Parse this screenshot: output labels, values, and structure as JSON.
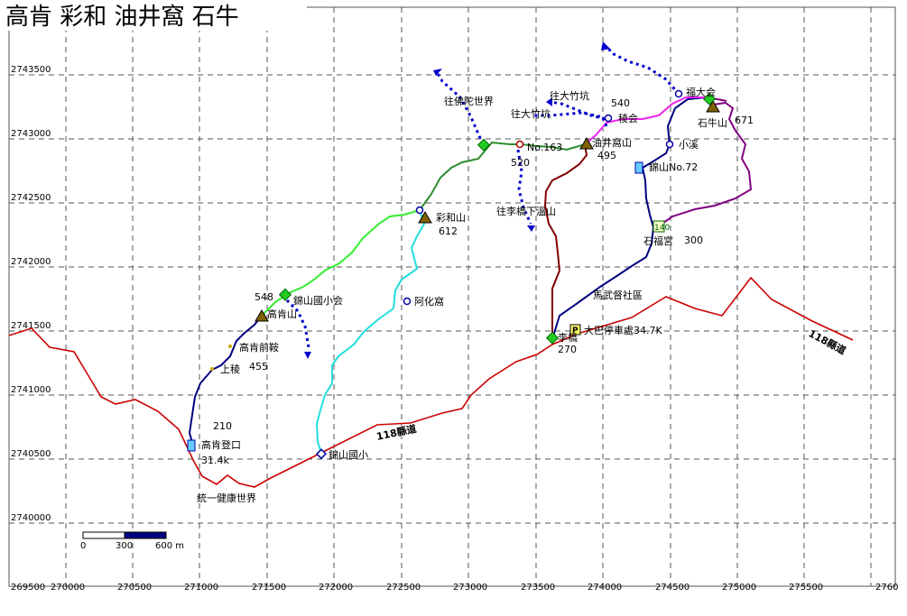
{
  "title": "高肯 彩和 油井窩 石牛",
  "x_ticks": [
    "269500",
    "270000",
    "270500",
    "271000",
    "271500",
    "272000",
    "272500",
    "273000",
    "273500",
    "274000",
    "274500",
    "275000",
    "275500",
    "2760"
  ],
  "y_ticks": [
    "2743500",
    "2743000",
    "2742500",
    "2742000",
    "2741500",
    "2741000",
    "2740500",
    "2740000"
  ],
  "labels": {
    "gaoken_peak": "高肯山",
    "gaoken_elev": "548",
    "jinshan_school_sign": "錦山國小会",
    "gaoken_qianan": "高肯前鞍",
    "shangling": "上稜",
    "shangling_elev": "455",
    "elev_210": "210",
    "gaoken_trailhead": "高肯登口",
    "dist_314": "31.4k",
    "tongyi_world": "統一健康世界",
    "jinshan_school": "錦山國小",
    "road_118_low": "118縣道",
    "road_118_right": "118縣道",
    "caihe_peak": "彩和山",
    "caihe_elev": "612",
    "ahua_house": "阿化窩",
    "to_fotuo": "往佛陀世界",
    "no163": "No.163",
    "elev_520": "520",
    "to_lijiao": "往李橋下溫山",
    "to_dazhu_keng_a": "往大竹坑",
    "to_dazhu_keng_b": "往大竹坑",
    "elev_540": "540",
    "lengjun": "稜会",
    "youjingwo_peak": "油井窩山",
    "youjingwo_elev": "495",
    "fuda_junction": "福大会",
    "shiniu_peak": "石牛山",
    "shiniu_elev": "671",
    "xiaoxi": "小溪",
    "jinshan_no72": "錦山No.72",
    "shifu_temple": "石福宮",
    "elev_300": "300",
    "mawu_community": "馬武督社區",
    "dabashi_parking": "大巴停車處34.7K",
    "liqiao": "李橋",
    "elev_270": "270",
    "trailhead_marker": "140"
  },
  "scale_bar": {
    "labels": [
      "0",
      "300",
      "600 m"
    ]
  },
  "colors": {
    "road": "#cc0000",
    "grid": "#555555",
    "route_green": "#2e8b2e",
    "route_lime": "#33ee33",
    "route_navy": "#000080",
    "route_cyan": "#22dddd",
    "route_maroon": "#800000",
    "route_purple": "#800080",
    "route_magenta": "#ee22ee",
    "arrow_blue": "#0000cc"
  }
}
